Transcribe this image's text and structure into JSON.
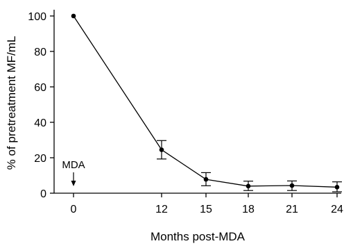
{
  "chart_data": {
    "type": "line",
    "xlabel": "Months post-MDA",
    "ylabel": "% of pretreatment MF/mL",
    "x_ticks": [
      "0",
      "12",
      "15",
      "18",
      "21",
      "24"
    ],
    "y_ticks": [
      "0",
      "20",
      "40",
      "60",
      "80",
      "100"
    ],
    "ylim": [
      0,
      100
    ],
    "series": [
      {
        "x": [
          "0",
          "12",
          "15",
          "18",
          "21",
          "24"
        ],
        "values": [
          100,
          24.5,
          7.8,
          4.0,
          4.3,
          3.4
        ],
        "error_low": [
          null,
          19.3,
          4.2,
          1.5,
          1.5,
          0.8
        ],
        "error_high": [
          null,
          29.7,
          11.6,
          6.8,
          6.9,
          6.4
        ]
      }
    ],
    "annotation": {
      "label": "MDA",
      "at_x": "0"
    },
    "grid": false,
    "colors": {
      "line": "#000000",
      "marker": "#000000",
      "axis": "#000000"
    }
  }
}
